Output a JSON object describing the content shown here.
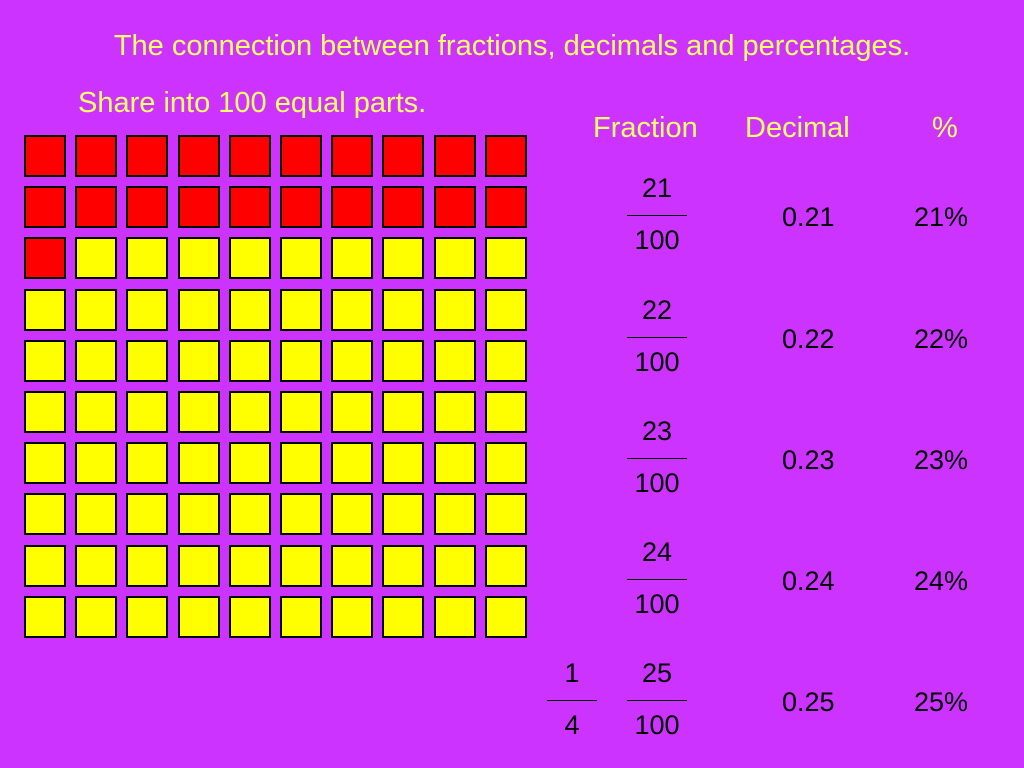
{
  "title": "The connection between fractions, decimals and percentages.",
  "subtitle": "Share into 100 equal parts.",
  "headers": {
    "fraction": "Fraction",
    "decimal": "Decimal",
    "percent": "%"
  },
  "grid": {
    "total": 100,
    "shaded": 21,
    "shaded_color": "#ff0000",
    "unshaded_color": "#ffff00"
  },
  "rows": [
    {
      "numerator": "21",
      "denominator": "100",
      "decimal": "0.21",
      "percent": "21%"
    },
    {
      "numerator": "22",
      "denominator": "100",
      "decimal": "0.22",
      "percent": "22%"
    },
    {
      "numerator": "23",
      "denominator": "100",
      "decimal": "0.23",
      "percent": "23%"
    },
    {
      "numerator": "24",
      "denominator": "100",
      "decimal": "0.24",
      "percent": "24%"
    },
    {
      "numerator": "25",
      "denominator": "100",
      "decimal": "0.25",
      "percent": "25%"
    }
  ],
  "simplified": {
    "numerator": "1",
    "denominator": "4"
  }
}
